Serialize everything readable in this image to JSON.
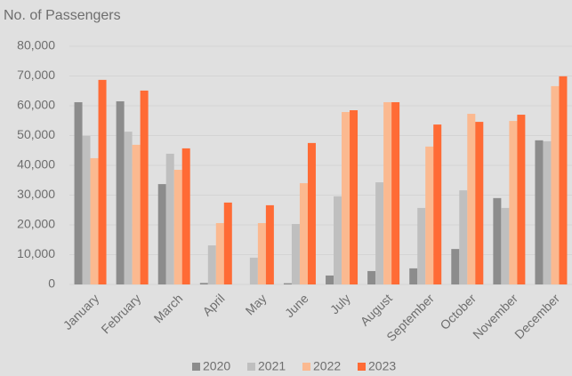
{
  "chart_data": {
    "type": "bar",
    "title": "No. of Passengers",
    "categories": [
      "January",
      "February",
      "March",
      "April",
      "May",
      "June",
      "July",
      "August",
      "September",
      "October",
      "November",
      "December"
    ],
    "series": [
      {
        "name": "2020",
        "color": "#8c8c8c",
        "values": [
          61200,
          61500,
          33700,
          500,
          0,
          400,
          3000,
          4500,
          5400,
          11900,
          29000,
          48400
        ]
      },
      {
        "name": "2021",
        "color": "#bfbfbf",
        "values": [
          49900,
          51300,
          43900,
          13100,
          9000,
          20300,
          29600,
          34300,
          25700,
          31600,
          25700,
          48100
        ]
      },
      {
        "name": "2022",
        "color": "#fbb990",
        "values": [
          42400,
          46900,
          38500,
          20600,
          20600,
          34000,
          57900,
          61200,
          46300,
          57300,
          54900,
          66600
        ]
      },
      {
        "name": "2023",
        "color": "#ff6b35",
        "values": [
          68700,
          65100,
          45700,
          27500,
          26600,
          47500,
          58500,
          61200,
          53700,
          54600,
          57000,
          69900
        ]
      }
    ],
    "ylim": [
      0,
      80000
    ],
    "yticks": [
      0,
      {
        "value": 10000,
        "label": "10,000"
      },
      {
        "value": 20000,
        "label": "20,000"
      },
      {
        "value": 30000,
        "label": "30,000"
      },
      {
        "value": 40000,
        "label": "40,000"
      },
      {
        "value": 50000,
        "label": "50,000"
      },
      {
        "value": 60000,
        "label": "60,000"
      },
      {
        "value": 70000,
        "label": "70,000"
      },
      {
        "value": 80000,
        "label": "80,000"
      }
    ],
    "grid": true,
    "legend": "bottom"
  }
}
